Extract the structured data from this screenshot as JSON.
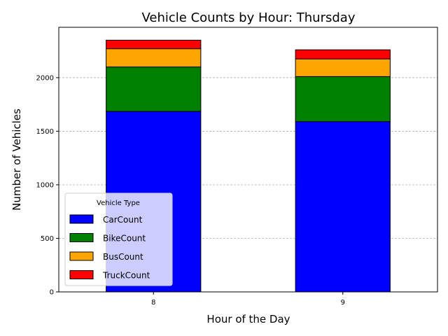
{
  "chart_data": {
    "type": "bar",
    "stacked": true,
    "title": "Vehicle Counts by Hour: Thursday",
    "xlabel": "Hour of the Day",
    "ylabel": "Number of Vehicles",
    "categories": [
      "8",
      "9"
    ],
    "series": [
      {
        "name": "CarCount",
        "color": "#0000ff",
        "values": [
          1685,
          1590
        ]
      },
      {
        "name": "BikeCount",
        "color": "#008000",
        "values": [
          415,
          420
        ]
      },
      {
        "name": "BusCount",
        "color": "#ffa500",
        "values": [
          170,
          165
        ]
      },
      {
        "name": "TruckCount",
        "color": "#ff0000",
        "values": [
          80,
          85
        ]
      }
    ],
    "ylim": [
      0,
      2470
    ],
    "yticks": [
      0,
      500,
      1000,
      1500,
      2000
    ],
    "grid": "y-dashed",
    "legend": {
      "title": "Vehicle Type",
      "placement": "lower-left"
    }
  }
}
